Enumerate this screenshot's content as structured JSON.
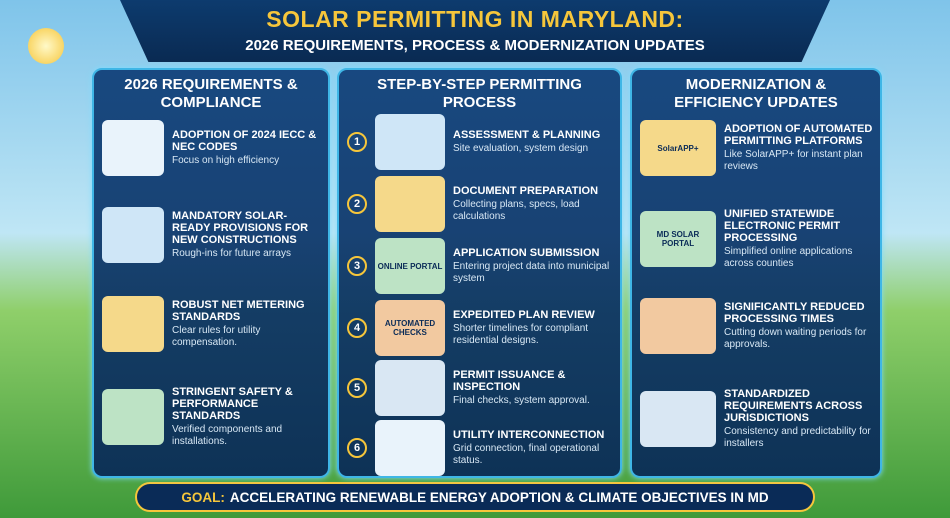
{
  "header": {
    "title": "SOLAR PERMITTING IN MARYLAND:",
    "subtitle": "2026 REQUIREMENTS, PROCESS & MODERNIZATION UPDATES"
  },
  "columns": [
    {
      "title": "2026 REQUIREMENTS & COMPLIANCE",
      "items": [
        {
          "title": "ADOPTION OF 2024 IECC & NEC CODES",
          "text": "Focus on high efficiency"
        },
        {
          "title": "MANDATORY SOLAR-READY PROVISIONS FOR NEW CONSTRUCTIONS",
          "text": "Rough-ins for future arrays"
        },
        {
          "title": "ROBUST NET METERING STANDARDS",
          "text": "Clear rules for utility compensation."
        },
        {
          "title": "STRINGENT SAFETY & PERFORMANCE STANDARDS",
          "text": "Verified components and installations."
        }
      ]
    },
    {
      "title": "STEP-BY-STEP PERMITTING PROCESS",
      "items": [
        {
          "number": "1",
          "title": "ASSESSMENT & PLANNING",
          "text": "Site evaluation, system design"
        },
        {
          "number": "2",
          "title": "DOCUMENT PREPARATION",
          "text": "Collecting plans, specs, load calculations"
        },
        {
          "number": "3",
          "title": "APPLICATION SUBMISSION",
          "text": "Entering project data into municipal system",
          "icon_label": "ONLINE PORTAL"
        },
        {
          "number": "4",
          "title": "EXPEDITED PLAN REVIEW",
          "text": "Shorter timelines for compliant residential designs.",
          "icon_label": "AUTOMATED CHECKS"
        },
        {
          "number": "5",
          "title": "PERMIT ISSUANCE & INSPECTION",
          "text": "Final checks, system approval."
        },
        {
          "number": "6",
          "title": "UTILITY INTERCONNECTION",
          "text": "Grid connection, final operational status."
        }
      ]
    },
    {
      "title": "MODERNIZATION & EFFICIENCY UPDATES",
      "items": [
        {
          "title": "ADOPTION OF AUTOMATED PERMITTING PLATFORMS",
          "text": "Like SolarAPP+ for instant plan reviews",
          "icon_label": "SolarAPP+"
        },
        {
          "title": "UNIFIED STATEWIDE ELECTRONIC PERMIT PROCESSING",
          "text": "Simplified online applications across counties",
          "icon_label": "MD SOLAR PORTAL"
        },
        {
          "title": "SIGNIFICANTLY REDUCED PROCESSING TIMES",
          "text": "Cutting down waiting periods for approvals."
        },
        {
          "title": "STANDARDIZED REQUIREMENTS ACROSS JURISDICTIONS",
          "text": "Consistency and predictability for installers"
        }
      ]
    }
  ],
  "footer": {
    "label": "GOAL:",
    "text": "ACCELERATING RENEWABLE ENERGY ADOPTION & CLIMATE OBJECTIVES IN MD"
  }
}
